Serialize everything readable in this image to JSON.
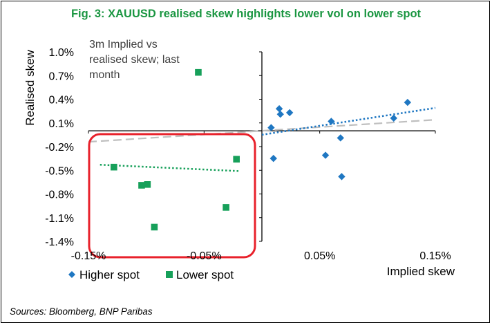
{
  "figure": {
    "title": "Fig. 3: XAUUSD realised skew highlights lower vol on lower spot",
    "source": "Sources: Bloomberg, BNP Paribas"
  },
  "colors": {
    "title": "#1a9641",
    "higher_spot": "#1f77c2",
    "lower_spot": "#17a05a",
    "highlight_box": "#e8212b",
    "overall_trend": "#bfbfbf"
  },
  "chart_data": {
    "type": "scatter",
    "xlabel": "Implied skew",
    "ylabel": "Realised skew",
    "annotation_lines": [
      "3m Implied vs",
      "realised skew; last",
      "month"
    ],
    "xlim": [
      -0.15,
      0.15
    ],
    "ylim": [
      -1.4,
      1.0
    ],
    "x_ticks": [
      -0.15,
      -0.05,
      0.05,
      0.15
    ],
    "x_tick_labels": [
      "-0.15%",
      "-0.05%",
      "0.05%",
      "0.15%"
    ],
    "y_ticks": [
      1.0,
      0.7,
      0.4,
      0.1,
      -0.2,
      -0.5,
      -0.8,
      -1.1,
      -1.4
    ],
    "y_tick_labels": [
      "1.0%",
      "0.7%",
      "0.4%",
      "0.1%",
      "-0.2%",
      "-0.5%",
      "-0.8%",
      "-1.1%",
      "-1.4%"
    ],
    "legend_position": "bottom-left",
    "series": [
      {
        "name": "Higher spot",
        "marker": "diamond",
        "points": [
          {
            "x": 0.008,
            "y": 0.04
          },
          {
            "x": 0.01,
            "y": -0.35
          },
          {
            "x": 0.015,
            "y": 0.28
          },
          {
            "x": 0.016,
            "y": 0.21
          },
          {
            "x": 0.024,
            "y": 0.23
          },
          {
            "x": 0.055,
            "y": -0.31
          },
          {
            "x": 0.06,
            "y": 0.12
          },
          {
            "x": 0.068,
            "y": -0.09
          },
          {
            "x": 0.069,
            "y": -0.58
          },
          {
            "x": 0.114,
            "y": 0.16
          },
          {
            "x": 0.126,
            "y": 0.36
          }
        ],
        "trendline": {
          "x": [
            0.0,
            0.15
          ],
          "y": [
            -0.05,
            0.29
          ]
        }
      },
      {
        "name": "Lower spot",
        "marker": "square",
        "points": [
          {
            "x": -0.128,
            "y": -0.46
          },
          {
            "x": -0.104,
            "y": -0.69
          },
          {
            "x": -0.099,
            "y": -0.68
          },
          {
            "x": -0.093,
            "y": -1.22
          },
          {
            "x": -0.055,
            "y": 0.74
          },
          {
            "x": -0.031,
            "y": -0.97
          },
          {
            "x": -0.022,
            "y": -0.36
          }
        ],
        "trendline": {
          "x": [
            -0.14,
            -0.02
          ],
          "y": [
            -0.43,
            -0.51
          ]
        }
      }
    ],
    "overall_trendline": {
      "x": [
        -0.15,
        0.15
      ],
      "y": [
        -0.14,
        0.14
      ]
    }
  }
}
